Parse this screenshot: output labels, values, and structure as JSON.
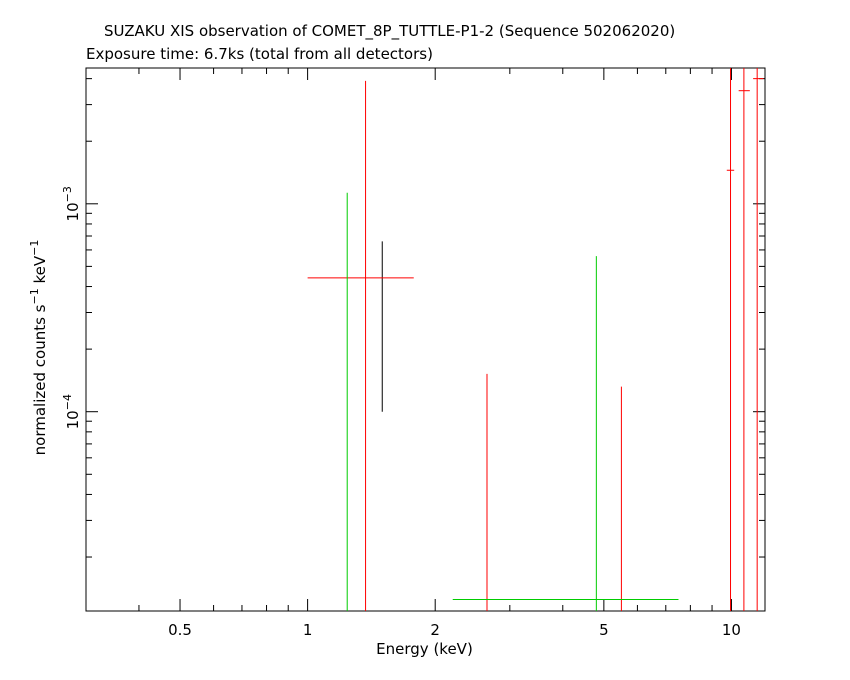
{
  "chart_data": {
    "type": "scatter",
    "title": "SUZAKU XIS observation of COMET_8P_TUTTLE-P1-2 (Sequence 502062020)",
    "subtitle": "Exposure time: 6.7ks (total from all detectors)",
    "xlabel": "Energy (keV)",
    "ylabel": "normalized counts s-1 keV-1",
    "xscale": "log",
    "yscale": "log",
    "xlim": [
      0.3,
      12.0
    ],
    "ylim": [
      1.1e-05,
      0.0045
    ],
    "x_ticks": [
      {
        "value": 0.5,
        "label": "0.5"
      },
      {
        "value": 1,
        "label": "1"
      },
      {
        "value": 2,
        "label": "2"
      },
      {
        "value": 5,
        "label": "5"
      },
      {
        "value": 10,
        "label": "10"
      }
    ],
    "y_ticks": [
      {
        "value": 0.0001,
        "mantissa": "10",
        "exponent": "−4"
      },
      {
        "value": 0.001,
        "mantissa": "10",
        "exponent": "−3"
      }
    ],
    "series": [
      {
        "color": "#000000",
        "points": [
          {
            "x": 1.5,
            "y": 0.00042,
            "xlo": 1.5,
            "xhi": 1.5,
            "ylo": 0.0001,
            "yhi": 0.00066
          }
        ]
      },
      {
        "color": "#ff0000",
        "points": [
          {
            "x": 1.37,
            "y": 0.00044,
            "xlo": 1.0,
            "xhi": 1.78,
            "ylo": 1.1e-05,
            "yhi": 0.0039
          },
          {
            "x": 2.65,
            "y": 5.5e-05,
            "xlo": 2.65,
            "xhi": 2.65,
            "ylo": 1.1e-05,
            "yhi": 0.000152
          },
          {
            "x": 5.5,
            "y": 5e-05,
            "xlo": 5.5,
            "xhi": 5.5,
            "ylo": 1.1e-05,
            "yhi": 0.000132
          },
          {
            "x": 9.95,
            "y": 0.00145,
            "xlo": 9.75,
            "xhi": 10.15,
            "ylo": 1.1e-05,
            "yhi": 0.0045
          },
          {
            "x": 10.7,
            "y": 0.0035,
            "xlo": 10.4,
            "xhi": 11.05,
            "ylo": 1.1e-05,
            "yhi": 0.0045
          },
          {
            "x": 11.5,
            "y": 0.004,
            "xlo": 11.25,
            "xhi": 11.9,
            "ylo": 1.1e-05,
            "yhi": 0.0045
          }
        ]
      },
      {
        "color": "#00cc00",
        "points": [
          {
            "x": 1.24,
            "y": 0.0004,
            "xlo": 1.24,
            "xhi": 1.24,
            "ylo": 1.1e-05,
            "yhi": 0.00113
          },
          {
            "x": 4.8,
            "y": 1.25e-05,
            "xlo": 2.2,
            "xhi": 7.5,
            "ylo": 1.1e-05,
            "yhi": 0.00056
          }
        ]
      }
    ]
  }
}
